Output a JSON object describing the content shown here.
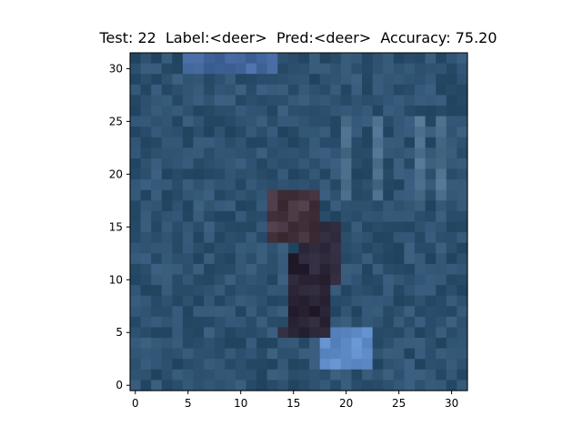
{
  "title": "Test: 22  Label:<deer>  Pred:<deer>  Accuracy: 75.20",
  "chart_data": {
    "type": "heatmap",
    "title": "Test: 22  Label:<deer>  Pred:<deer>  Accuracy: 75.20",
    "xlabel": "",
    "ylabel": "",
    "xlim": [
      -0.5,
      31.5
    ],
    "ylim": [
      31.5,
      -0.5
    ],
    "xticks": [
      0,
      5,
      10,
      15,
      20,
      25,
      30
    ],
    "yticks": [
      0,
      5,
      10,
      15,
      20,
      25,
      30
    ],
    "xtick_labels": [
      "0",
      "5",
      "10",
      "15",
      "20",
      "25",
      "30"
    ],
    "ytick_labels": [
      "0",
      "5",
      "10",
      "15",
      "20",
      "25",
      "30"
    ],
    "grid": false,
    "image_size": [
      32,
      32
    ],
    "dominant_colors": [
      "#2e5170",
      "#3a6a8c",
      "#2c2436",
      "#6c9ad6"
    ],
    "test_index": 22,
    "label": "deer",
    "prediction": "deer",
    "accuracy": 75.2
  }
}
